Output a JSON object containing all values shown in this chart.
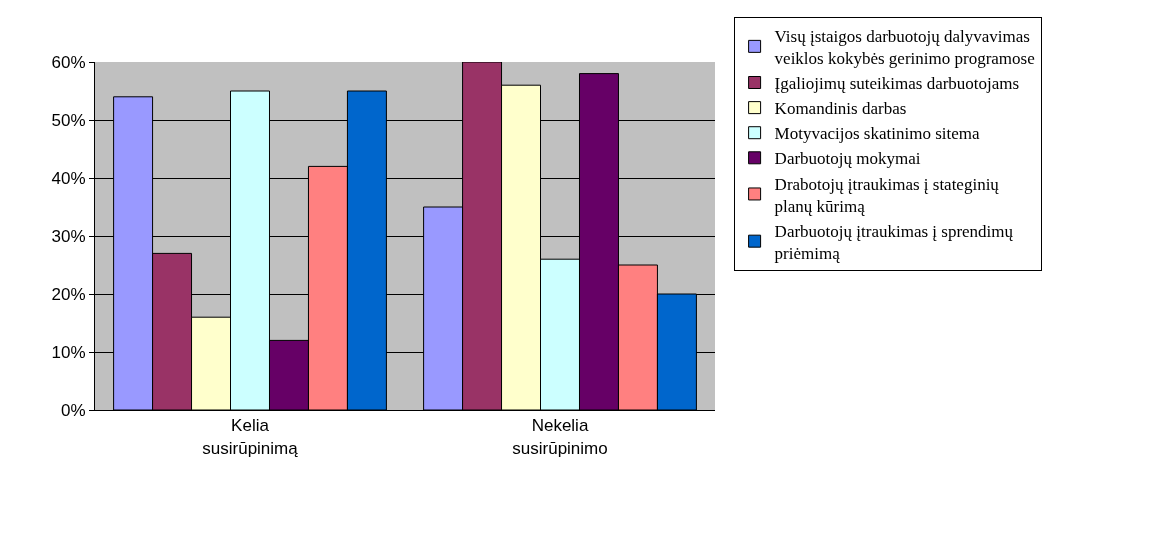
{
  "chart_data": {
    "type": "bar",
    "categories": [
      "Kelia susirūpinimą",
      "Nekelia susirūpinimo"
    ],
    "series": [
      {
        "name": "Visų įstaigos darbuotojų dalyvavimas veiklos kokybės gerinimo programose",
        "color": "#9999ff",
        "values": [
          54,
          35
        ]
      },
      {
        "name": "Įgaliojimų suteikimas darbuotojams",
        "color": "#993366",
        "values": [
          27,
          60
        ]
      },
      {
        "name": "Komandinis darbas",
        "color": "#ffffcc",
        "values": [
          16,
          56
        ]
      },
      {
        "name": "Motyvacijos skatinimo sitema",
        "color": "#ccffff",
        "values": [
          55,
          26
        ]
      },
      {
        "name": "Darbuotojų mokymai",
        "color": "#660066",
        "values": [
          12,
          58
        ]
      },
      {
        "name": "Drabotojų įtraukimas į stateginių planų kūrimą",
        "color": "#ff8080",
        "values": [
          42,
          25
        ]
      },
      {
        "name": "Darbuotojų įtraukimas į sprendimų priėmimą",
        "color": "#0066cc",
        "values": [
          55,
          20
        ]
      }
    ],
    "ylim": [
      0,
      60
    ],
    "yticks": [
      {
        "value": 0,
        "label": "0%"
      },
      {
        "value": 10,
        "label": "10%"
      },
      {
        "value": 20,
        "label": "20%"
      },
      {
        "value": 30,
        "label": "30%"
      },
      {
        "value": 40,
        "label": "40%"
      },
      {
        "value": 50,
        "label": "50%"
      },
      {
        "value": 60,
        "label": "60%"
      }
    ],
    "grid": "y",
    "legend": "right"
  }
}
